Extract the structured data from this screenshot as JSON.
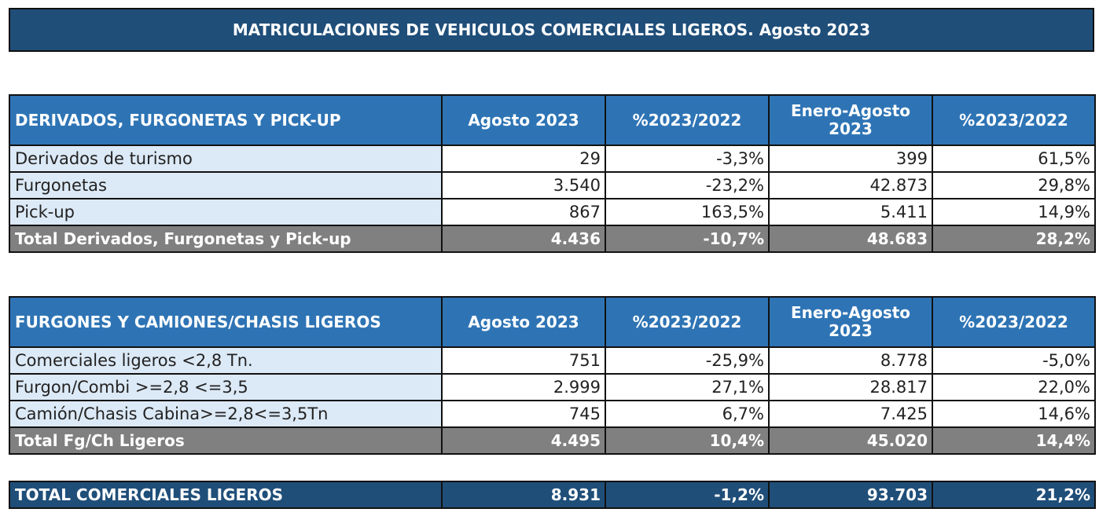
{
  "title": "MATRICULACIONES DE VEHICULOS COMERCIALES LIGEROS. Agosto 2023",
  "section1": {
    "headers": [
      "DERIVADOS, FURGONETAS Y PICK-UP",
      "Agosto 2023",
      "%2023/2022",
      "Enero-Agosto 2023",
      "%2023/2022"
    ],
    "rows": [
      [
        "Derivados de turismo",
        "29",
        "-3,3%",
        "399",
        "61,5%"
      ],
      [
        "Furgonetas",
        "3.540",
        "-23,2%",
        "42.873",
        "29,8%"
      ],
      [
        "Pick-up",
        "867",
        "163,5%",
        "5.411",
        "14,9%"
      ]
    ],
    "total": [
      "Total Derivados, Furgonetas y Pick-up",
      "4.436",
      "-10,7%",
      "48.683",
      "28,2%"
    ]
  },
  "section2": {
    "headers": [
      "FURGONES Y CAMIONES/CHASIS LIGEROS",
      "Agosto 2023",
      "%2023/2022",
      "Enero-Agosto 2023",
      "%2023/2022"
    ],
    "rows": [
      [
        "Comerciales ligeros <2,8 Tn.",
        "751",
        "-25,9%",
        "8.778",
        "-5,0%"
      ],
      [
        "Furgon/Combi >=2,8 <=3,5",
        "2.999",
        "27,1%",
        "28.817",
        "22,0%"
      ],
      [
        "Camión/Chasis Cabina>=2,8<=3,5Tn",
        "745",
        "6,7%",
        "7.425",
        "14,6%"
      ]
    ],
    "total": [
      "Total Fg/Ch Ligeros",
      "4.495",
      "10,4%",
      "45.020",
      "14,4%"
    ]
  },
  "grand_total": [
    "TOTAL COMERCIALES LIGEROS",
    "8.931",
    "-1,2%",
    "93.703",
    "21,2%"
  ],
  "colors": {
    "title_bg": "#1f4e79",
    "header_bg": "#2e74b5",
    "label_bg": "#dce9f6",
    "total_bg": "#808080",
    "grand_total_bg": "#1f4e79"
  }
}
